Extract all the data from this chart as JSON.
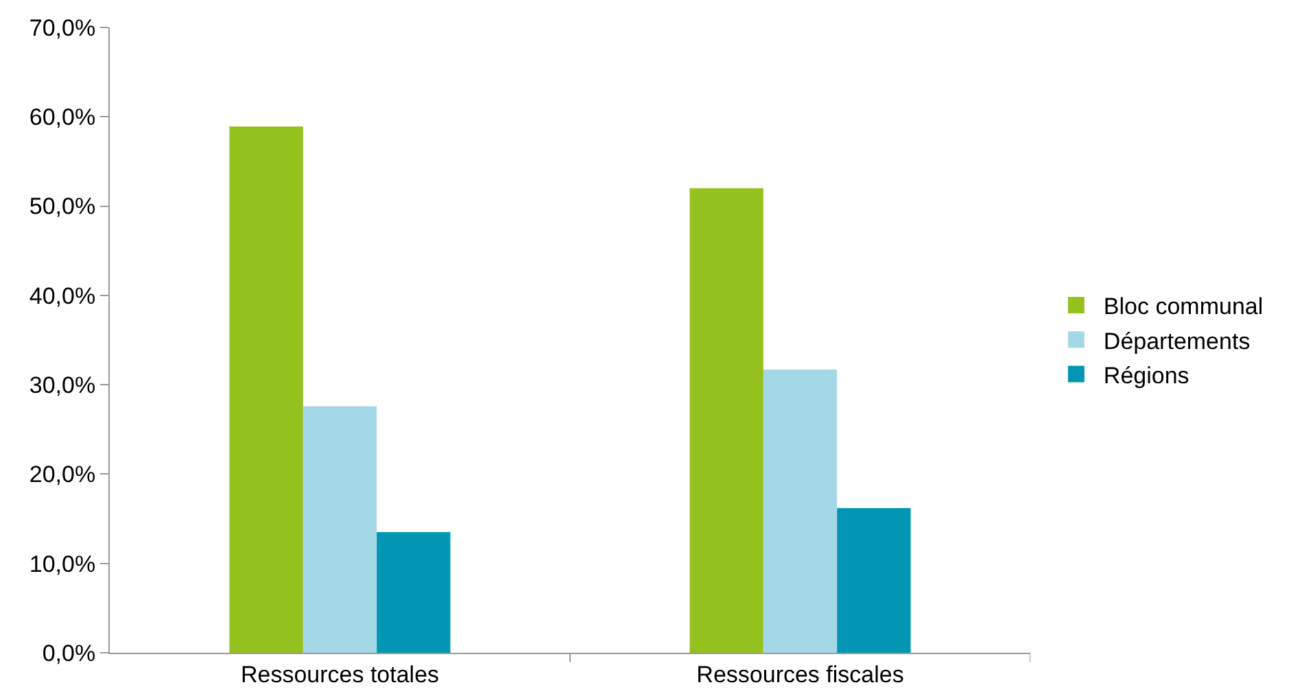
{
  "chart_data": {
    "type": "bar",
    "categories": [
      "Ressources totales",
      "Ressources fiscales"
    ],
    "series": [
      {
        "name": "Bloc communal",
        "color": "#95c11f",
        "values": [
          58.9,
          52.0
        ]
      },
      {
        "name": "Départements",
        "color": "#a5d8e6",
        "values": [
          27.6,
          31.7
        ]
      },
      {
        "name": "Régions",
        "color": "#0096b4",
        "values": [
          13.5,
          16.2
        ]
      }
    ],
    "ylim": [
      0,
      70
    ],
    "yticks": [
      {
        "value": 0,
        "label": "0,0%"
      },
      {
        "value": 10,
        "label": "10,0%"
      },
      {
        "value": 20,
        "label": "20,0%"
      },
      {
        "value": 30,
        "label": "30,0%"
      },
      {
        "value": 40,
        "label": "40,0%"
      },
      {
        "value": 50,
        "label": "50,0%"
      },
      {
        "value": 60,
        "label": "60,0%"
      },
      {
        "value": 70,
        "label": "70,0%"
      }
    ],
    "grid": false,
    "legend": "right"
  }
}
